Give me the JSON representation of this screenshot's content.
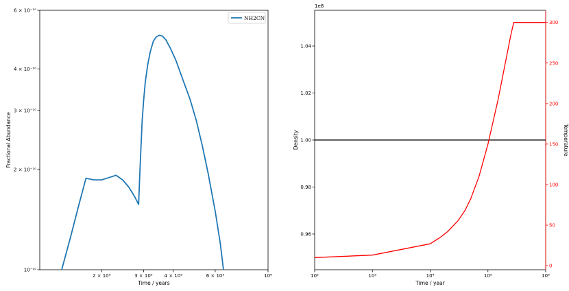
{
  "chart_data": [
    {
      "type": "line",
      "xlabel": "Time / years",
      "ylabel": "Fractional Abundance",
      "xscale": "log",
      "yscale": "log",
      "xlim": [
        110000,
        1000000
      ],
      "ylim": [
        1e-10,
        6e-10
      ],
      "xtick_labels": [
        "2 × 10⁵",
        "3 × 10⁵",
        "4 × 10⁵",
        "6 × 10⁵",
        "10⁶"
      ],
      "xtick_values": [
        200000,
        300000,
        400000,
        600000,
        1000000
      ],
      "ytick_labels": [
        "10⁻¹⁰",
        "2 × 10⁻¹⁰",
        "3 × 10⁻¹⁰",
        "4 × 10⁻¹⁰",
        "6 × 10⁻¹⁰"
      ],
      "ytick_values": [
        1e-10,
        2e-10,
        3e-10,
        4e-10,
        6e-10
      ],
      "legend": {
        "position": "upper right",
        "entries": [
          "NH2CN"
        ]
      },
      "series": [
        {
          "name": "NH2CN",
          "color": "#1f77b4",
          "x": [
            136000,
            148000,
            160000,
            172000,
            186000,
            200000,
            215000,
            230000,
            245000,
            260000,
            275000,
            286000,
            290000,
            296000,
            300000,
            305000,
            312000,
            320000,
            330000,
            340000,
            350000,
            360000,
            372000,
            390000,
            410000,
            440000,
            470000,
            500000,
            530000,
            560000,
            600000,
            630000,
            650000
          ],
          "y": [
            1e-10,
            1.25e-10,
            1.55e-10,
            1.88e-10,
            1.86e-10,
            1.86e-10,
            1.89e-10,
            1.92e-10,
            1.86e-10,
            1.77e-10,
            1.66e-10,
            1.57e-10,
            2e-10,
            2.78e-10,
            3.2e-10,
            3.65e-10,
            4.1e-10,
            4.5e-10,
            4.85e-10,
            5e-10,
            5.05e-10,
            5.02e-10,
            4.9e-10,
            4.6e-10,
            4.25e-10,
            3.7e-10,
            3.25e-10,
            2.8e-10,
            2.35e-10,
            1.95e-10,
            1.5e-10,
            1.2e-10,
            1e-10
          ]
        }
      ]
    },
    {
      "type": "line",
      "xlabel": "Time / year",
      "ylabel": "Density",
      "ylabel_right": "Temperature",
      "xscale": "log",
      "xlim": [
        100,
        1000000
      ],
      "ylim": [
        94480000.0,
        105520000.0
      ],
      "ylim_right": [
        -5,
        315
      ],
      "offset_text": "1e8",
      "xtick_labels": [
        "10²",
        "10³",
        "10⁴",
        "10⁵",
        "10⁶"
      ],
      "xtick_values": [
        100,
        1000,
        10000,
        100000,
        1000000
      ],
      "ytick_labels": [
        "0.96",
        "0.98",
        "1.00",
        "1.02",
        "1.04"
      ],
      "ytick_values": [
        96000000.0,
        98000000.0,
        100000000.0,
        102000000.0,
        104000000.0
      ],
      "ytick_labels_right": [
        "0",
        "50",
        "100",
        "150",
        "200",
        "250",
        "300"
      ],
      "ytick_values_right": [
        0,
        50,
        100,
        150,
        200,
        250,
        300
      ],
      "right_axis_color": "#ff0000",
      "series": [
        {
          "axis": "left",
          "color": "#000000",
          "x": [
            100,
            1000000
          ],
          "y": [
            100000000.0,
            100000000.0
          ]
        },
        {
          "axis": "right",
          "color": "#ff0000",
          "x": [
            100,
            1000,
            10000,
            15000,
            20000,
            30000,
            40000,
            50000,
            70000,
            100000,
            150000,
            200000,
            250000,
            280000,
            300000,
            1000000
          ],
          "y": [
            10,
            13,
            27,
            35,
            42,
            55,
            68,
            82,
            110,
            150,
            205,
            250,
            285,
            300,
            300,
            300
          ]
        }
      ]
    }
  ]
}
